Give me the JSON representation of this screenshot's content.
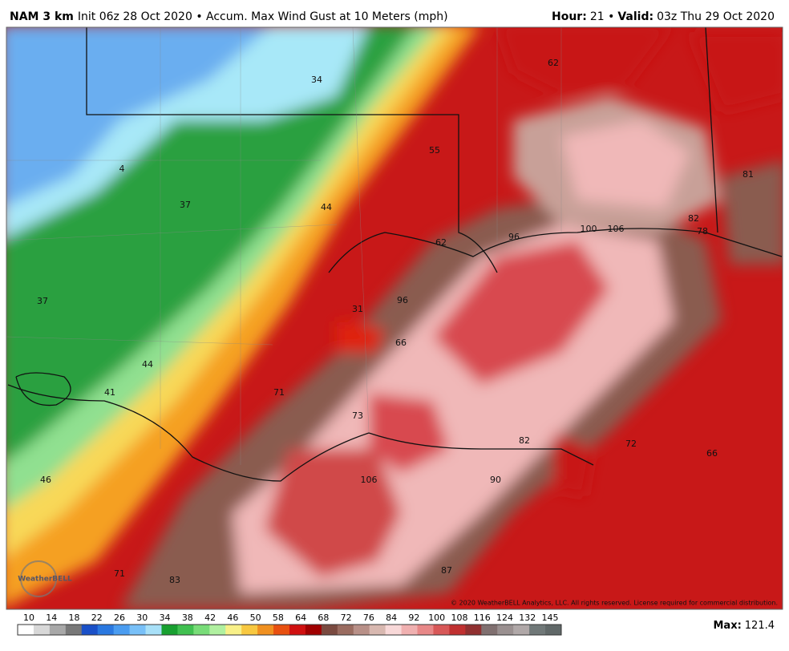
{
  "header": {
    "model": "NAM 3 km",
    "description": "Init 06z 28 Oct 2020 • Accum. Max Wind Gust at 10 Meters (mph)",
    "hour_label": "Hour:",
    "hour": "21 •",
    "valid_label": "Valid:",
    "valid": "03z Thu 29 Oct 2020"
  },
  "map": {
    "labels": [
      34,
      62,
      55,
      4,
      37,
      44,
      81,
      82,
      78,
      100,
      106,
      96,
      62,
      37,
      31,
      96,
      66,
      44,
      41,
      71,
      73,
      82,
      72,
      66,
      46,
      106,
      90,
      71,
      83,
      87
    ],
    "copyright": "© 2020 WeatherBELL Analytics, LLC. All rights reserved. License required for commercial distribution.",
    "logo": "WeatherBELL"
  },
  "colorbar": {
    "ticks": [
      10,
      14,
      18,
      22,
      26,
      30,
      34,
      38,
      42,
      46,
      50,
      58,
      64,
      68,
      72,
      76,
      84,
      92,
      100,
      108,
      116,
      124,
      132,
      145
    ]
  },
  "footer": {
    "max_label": "Max:",
    "max": "121.4"
  }
}
